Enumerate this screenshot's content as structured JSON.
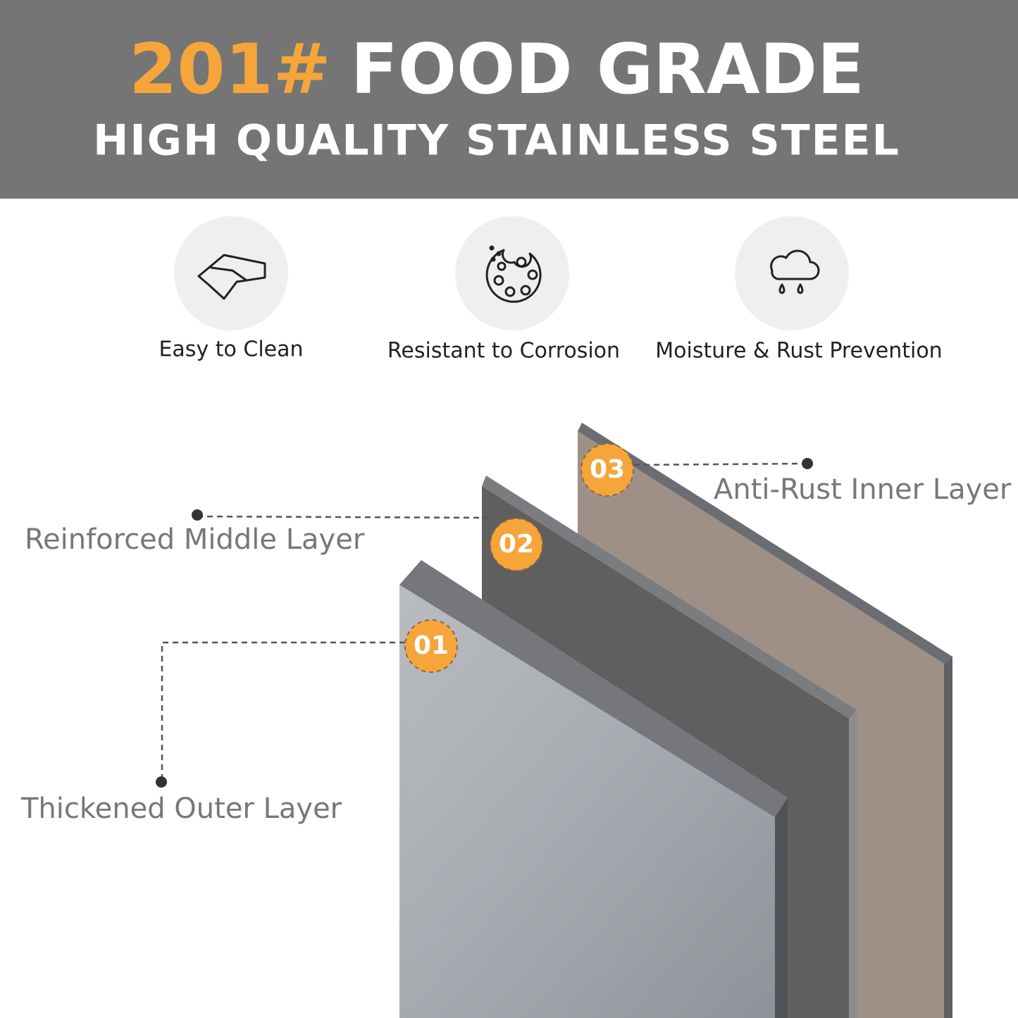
{
  "header": {
    "highlight": "201#",
    "title": "FOOD GRADE",
    "subtitle": "HIGH QUALITY STAINLESS STEEL"
  },
  "features": [
    {
      "label": "Easy to Clean"
    },
    {
      "label": "Resistant to Corrosion"
    },
    {
      "label": "Moisture & Rust Prevention"
    }
  ],
  "layers": [
    {
      "number": "01",
      "label": "Thickened Outer Layer"
    },
    {
      "number": "02",
      "label": "Reinforced Middle Layer"
    },
    {
      "number": "03",
      "label": "Anti-Rust Inner Layer"
    }
  ]
}
